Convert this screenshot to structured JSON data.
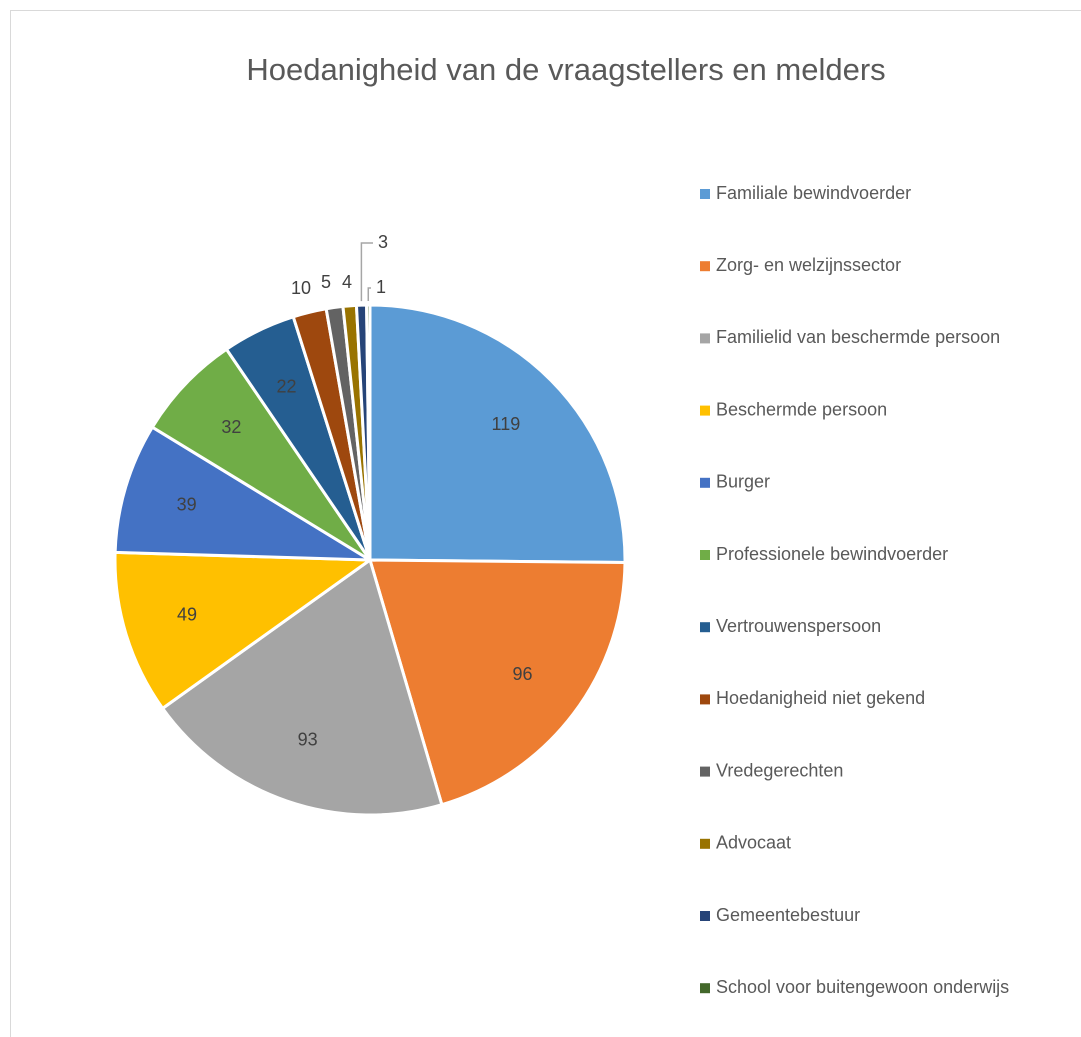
{
  "chart_data": {
    "type": "pie",
    "title": "Hoedanigheid van de vraagstellers en melders",
    "categories": [
      "Familiale bewindvoerder",
      "Zorg- en welzijnssector",
      "Familielid van beschermde persoon",
      "Beschermde persoon",
      "Burger",
      "Professionele bewindvoerder",
      "Vertrouwenspersoon",
      "Hoedanigheid niet gekend",
      "Vredegerechten",
      "Advocaat",
      "Gemeentebestuur",
      "School voor buitengewoon onderwijs"
    ],
    "values": [
      119,
      96,
      93,
      49,
      39,
      32,
      22,
      10,
      5,
      4,
      3,
      1
    ],
    "colors": [
      "#5b9bd5",
      "#ed7d31",
      "#a5a5a5",
      "#ffc000",
      "#4472c4",
      "#70ad47",
      "#255e91",
      "#9e480e",
      "#636363",
      "#997300",
      "#264478",
      "#43682b"
    ],
    "legend": "right"
  }
}
